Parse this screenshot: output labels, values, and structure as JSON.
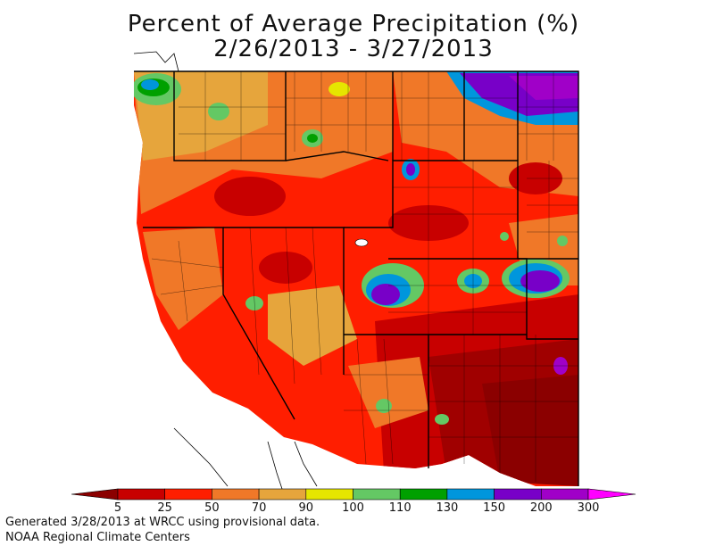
{
  "title_line1": "Percent of Average Precipitation (%)",
  "title_line2": "2/26/2013 - 3/27/2013",
  "legend": {
    "tick_labels": [
      "5",
      "25",
      "50",
      "70",
      "90",
      "100",
      "110",
      "130",
      "150",
      "200",
      "300"
    ],
    "colors": [
      "#8b0000",
      "#c80000",
      "#ff1e00",
      "#f07828",
      "#e6a53c",
      "#e6e600",
      "#64c864",
      "#00a000",
      "#0096dc",
      "#7800c8",
      "#a000c8",
      "#ff00ff"
    ]
  },
  "footer_line1": "Generated 3/28/2013 at WRCC using provisional data.",
  "footer_line2": "NOAA Regional Climate Centers"
}
